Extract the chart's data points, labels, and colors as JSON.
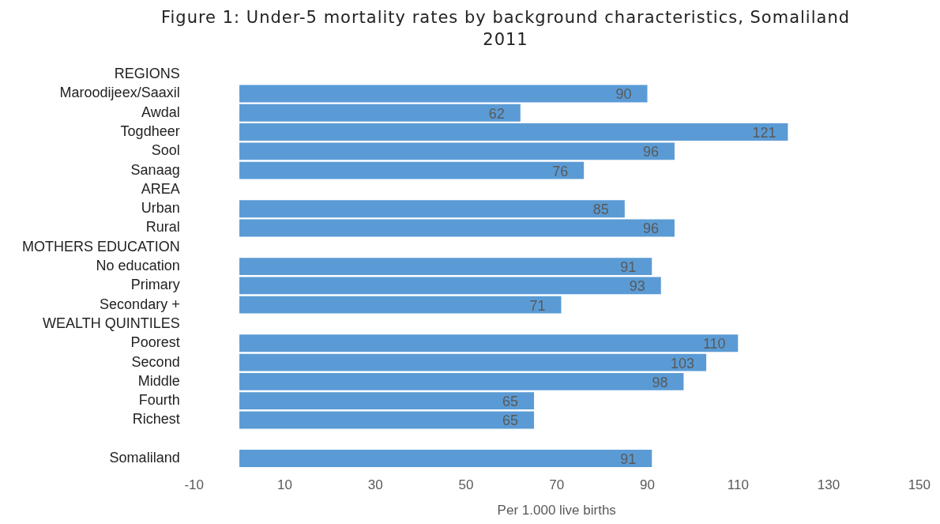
{
  "chart_data": {
    "type": "bar",
    "orientation": "horizontal",
    "title": "Figure 1: Under-5 mortality rates by background characteristics, Somaliland 2011",
    "xlabel": "Per 1.000 live births",
    "categories": [
      "REGIONS",
      "Maroodijeex/Saaxil",
      "Awdal",
      "Togdheer",
      "Sool",
      "Sanaag",
      "AREA",
      "Urban",
      "Rural",
      "MOTHERS EDUCATION",
      "No education",
      "Primary",
      "Secondary +",
      "WEALTH QUINTILES",
      "Poorest",
      "Second",
      "Middle",
      "Fourth",
      "Richest",
      null,
      "Somaliland"
    ],
    "values": [
      null,
      90,
      62,
      121,
      96,
      76,
      null,
      85,
      96,
      null,
      91,
      93,
      71,
      null,
      110,
      103,
      98,
      65,
      65,
      null,
      91
    ],
    "color": "#5b9bd5",
    "xlim": [
      -10,
      150
    ],
    "xticks": [
      -10,
      10,
      30,
      50,
      70,
      90,
      110,
      130,
      150
    ],
    "grid": false,
    "legend": false,
    "data_labels": true
  }
}
